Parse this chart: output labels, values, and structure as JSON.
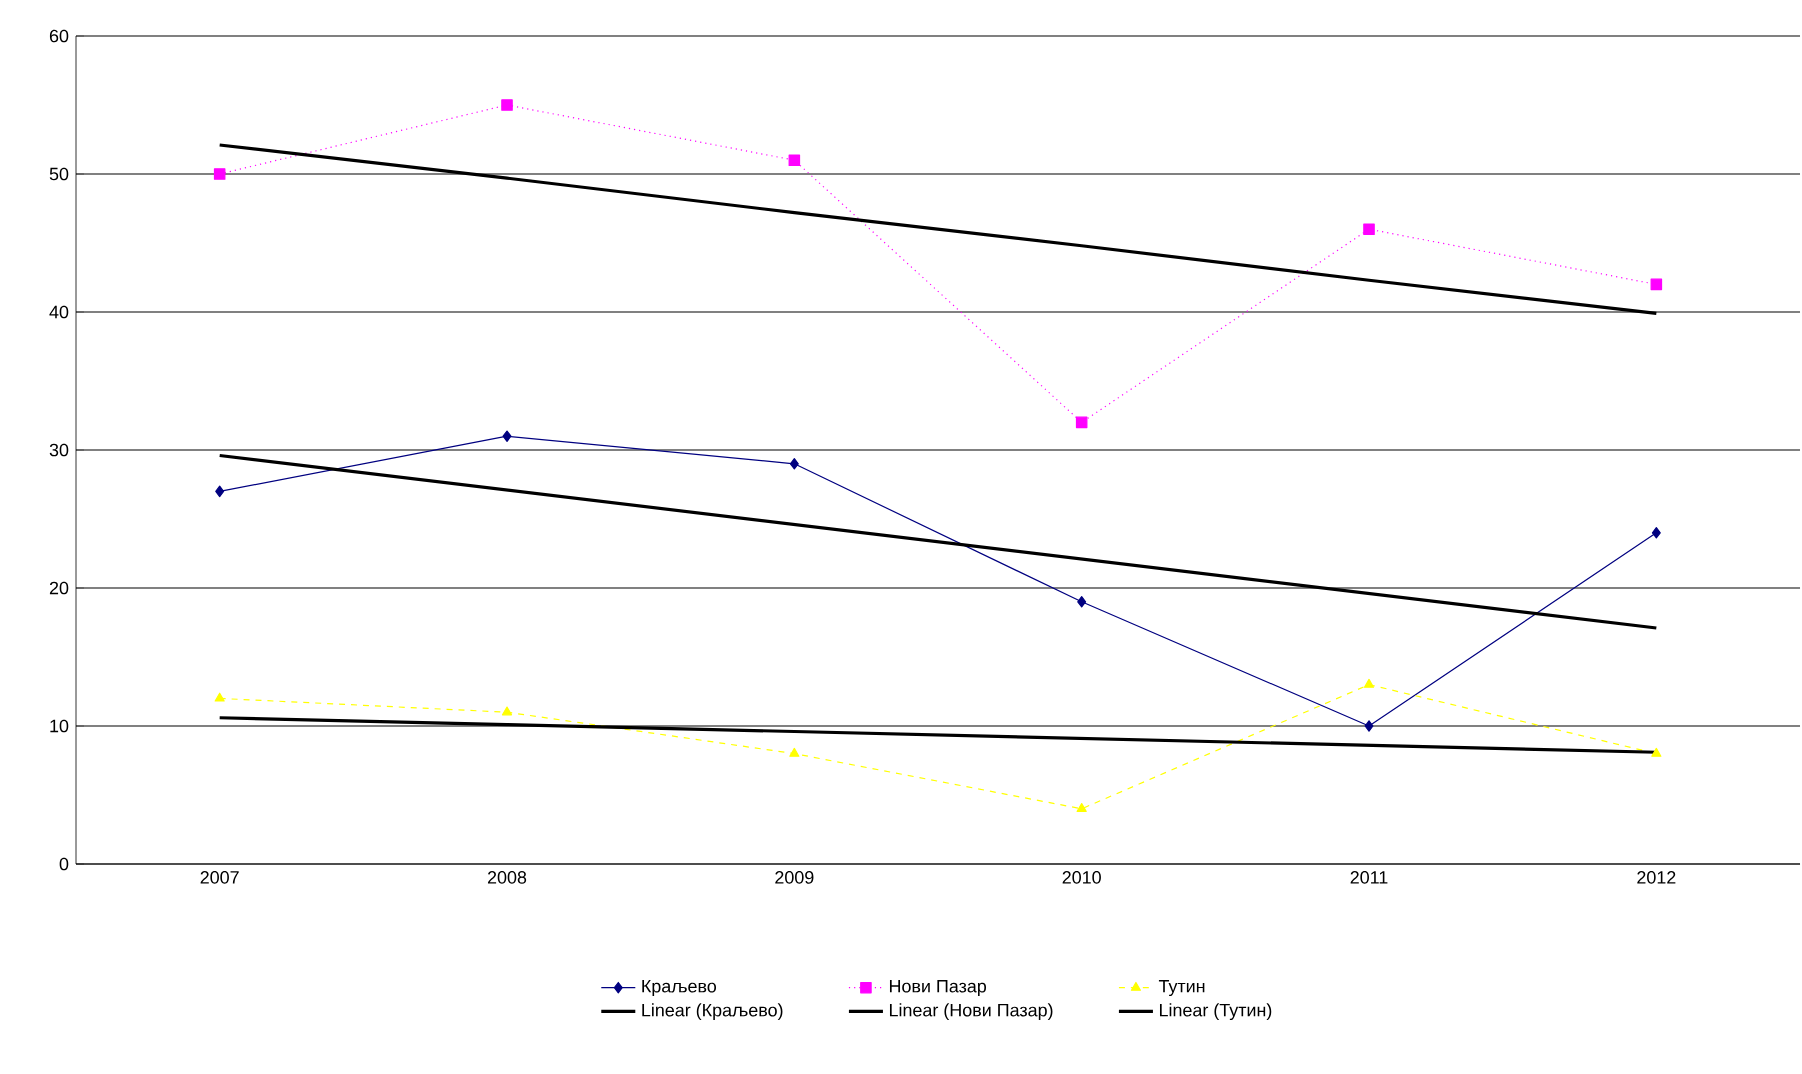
{
  "chart_data": {
    "type": "line",
    "categories": [
      "2007",
      "2008",
      "2009",
      "2010",
      "2011",
      "2012"
    ],
    "series": [
      {
        "name": "Краљево",
        "color": "#000080",
        "marker": "diamond",
        "line_style": "solid",
        "values": [
          27,
          31,
          29,
          19,
          10,
          24
        ]
      },
      {
        "name": "Нови Пазар",
        "color": "#ff00ff",
        "marker": "square",
        "line_style": "dotted",
        "values": [
          50,
          55,
          51,
          32,
          46,
          42
        ]
      },
      {
        "name": "Тутин",
        "color": "#ffff00",
        "marker": "triangle",
        "line_style": "dashed",
        "values": [
          12,
          11,
          8,
          4,
          13,
          8
        ]
      },
      {
        "name": "Linear (Краљево)",
        "color": "#000000",
        "marker": "none",
        "line_style": "solid",
        "values": [
          29.6,
          27.1,
          24.6,
          22.1,
          19.6,
          17.1
        ]
      },
      {
        "name": "Linear (Нови Пазар)",
        "color": "#000000",
        "marker": "none",
        "line_style": "solid",
        "values": [
          52.1,
          49.7,
          47.2,
          44.8,
          42.3,
          39.9
        ]
      },
      {
        "name": "Linear (Тутин)",
        "color": "#000000",
        "marker": "none",
        "line_style": "solid",
        "values": [
          10.6,
          10.1,
          9.6,
          9.1,
          8.6,
          8.1
        ]
      }
    ],
    "ylim": [
      0,
      60
    ],
    "yticks": [
      0,
      10,
      20,
      30,
      40,
      50,
      60
    ],
    "grid": "y",
    "legend": "bottom"
  }
}
